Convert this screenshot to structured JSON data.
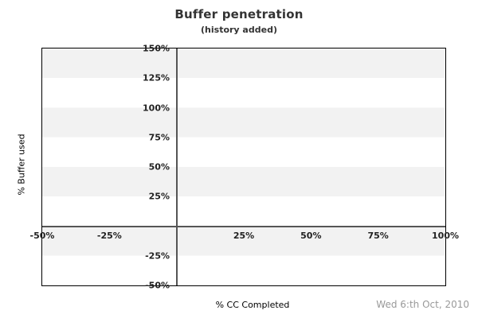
{
  "header": {
    "title": "Buffer penetration",
    "subtitle": "(history added)"
  },
  "footer": {
    "date": "Wed 6:th Oct, 2010"
  },
  "chart_data": {
    "type": "line",
    "title": "Buffer penetration",
    "subtitle": "(history added)",
    "xlabel": "% CC Completed",
    "ylabel": "% Buffer used",
    "xlim": [
      -50,
      100
    ],
    "ylim": [
      -50,
      150
    ],
    "xticks": [
      {
        "value": -50,
        "label": "-50%"
      },
      {
        "value": -25,
        "label": "-25%"
      },
      {
        "value": 25,
        "label": "25%"
      },
      {
        "value": 50,
        "label": "50%"
      },
      {
        "value": 75,
        "label": "75%"
      },
      {
        "value": 100,
        "label": "100%"
      }
    ],
    "yticks": [
      {
        "value": 150,
        "label": "150%"
      },
      {
        "value": 125,
        "label": "125%"
      },
      {
        "value": 100,
        "label": "100%"
      },
      {
        "value": 75,
        "label": "75%"
      },
      {
        "value": 50,
        "label": "50%"
      },
      {
        "value": 25,
        "label": "25%"
      },
      {
        "value": -25,
        "label": "-25%"
      },
      {
        "value": -50,
        "label": "-50%"
      }
    ],
    "series": [],
    "grid": "horizontal striped bands every 25%, alternating gray/white, gray band at top; no data plotted",
    "zero_lines": {
      "horizontal_at": 0,
      "vertical_at": 0
    },
    "legend": "none",
    "annotations": {
      "date": "Wed 6:th Oct, 2010"
    },
    "colors": {
      "band_gray": "#f2f2f2",
      "band_white": "#ffffff",
      "plot_border": "#000000",
      "zero_line": "#555555",
      "title_text": "#333333",
      "tick_text": "#222222",
      "date_text": "#999999"
    }
  }
}
